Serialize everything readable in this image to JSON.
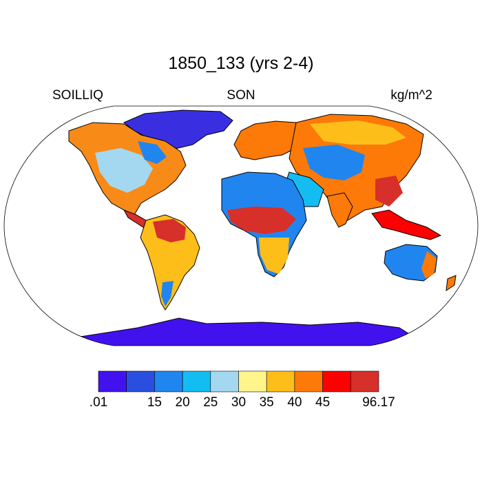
{
  "title": "1850_133 (yrs 2-4)",
  "left_label": "SOILLIQ",
  "center_label": "SON",
  "right_label": "kg/m^2",
  "colorbar": {
    "colors": [
      "#4212ee",
      "#2a4ee0",
      "#2185f0",
      "#13bdf2",
      "#a4d8f0",
      "#fff58a",
      "#fdbe1a",
      "#fd7a08",
      "#fd0000",
      "#d72f2a"
    ],
    "labels": [
      ".01",
      "15",
      "20",
      "25",
      "30",
      "35",
      "40",
      "45",
      "96.17"
    ]
  }
}
